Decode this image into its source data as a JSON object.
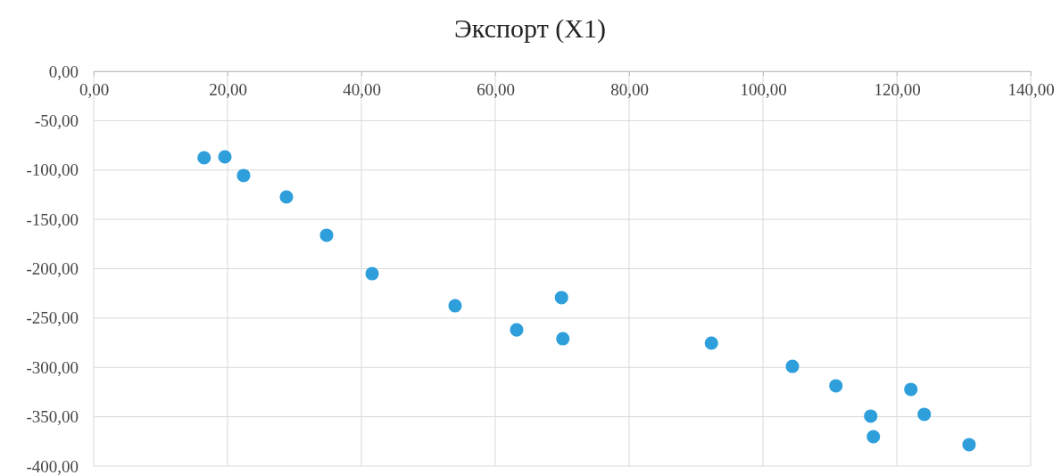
{
  "chart_data": {
    "type": "scatter",
    "title": "Экспорт (X1)",
    "x": [
      16.5,
      19.6,
      22.4,
      28.8,
      34.8,
      41.6,
      54,
      63.2,
      69.9,
      70.1,
      92.3,
      104.4,
      110.9,
      122.1,
      116.1,
      116.5,
      124.1,
      130.8
    ],
    "values": [
      -87.6,
      -86.7,
      -105.6,
      -127.3,
      -166.1,
      -205,
      -237.5,
      -261.9,
      -229.3,
      -270.9,
      -275.4,
      -298.9,
      -318.7,
      -322.3,
      -349.4,
      -370.2,
      -347.6,
      -378.3
    ],
    "color": "#2e9fdb",
    "marker": "circle",
    "grid": true,
    "xlim": [
      0,
      140
    ],
    "xticks": [
      {
        "value": 0,
        "label": "0,00"
      },
      {
        "value": 20,
        "label": "20,00"
      },
      {
        "value": 40,
        "label": "40,00"
      },
      {
        "value": 60,
        "label": "60,00"
      },
      {
        "value": 80,
        "label": "80,00"
      },
      {
        "value": 100,
        "label": "100,00"
      },
      {
        "value": 120,
        "label": "120,00"
      },
      {
        "value": 140,
        "label": "140,00"
      }
    ],
    "ylim": [
      -400,
      0
    ],
    "yticks": [
      {
        "value": 0,
        "label": "0,00"
      },
      {
        "value": -50,
        "label": "-50,00"
      },
      {
        "value": -100,
        "label": "-100,00"
      },
      {
        "value": -150,
        "label": "-150,00"
      },
      {
        "value": -200,
        "label": "-200,00"
      },
      {
        "value": -250,
        "label": "-250,00"
      },
      {
        "value": -300,
        "label": "-300,00"
      },
      {
        "value": -350,
        "label": "-350,00"
      },
      {
        "value": -400,
        "label": "-400,00"
      }
    ]
  }
}
